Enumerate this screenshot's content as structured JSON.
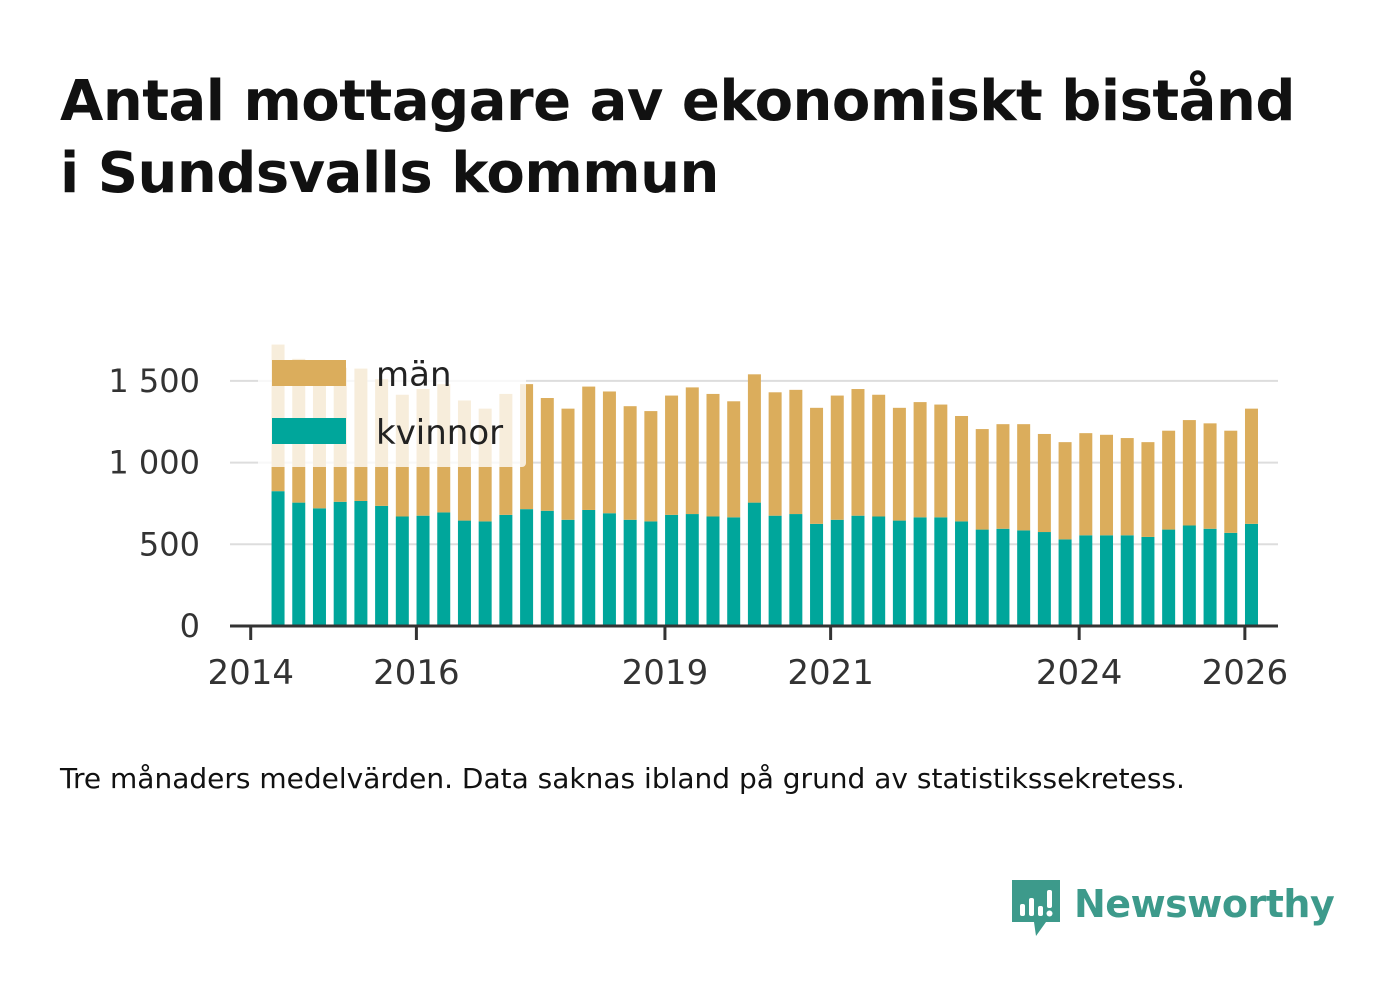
{
  "title_lines": [
    "Antal mottagare av ekonomiskt bistånd",
    "i Sundsvalls kommun"
  ],
  "caption": "Tre månaders medelvärden. Data saknas ibland på grund av statistikssekretess.",
  "brand": {
    "name": "Newsworthy",
    "color": "#3d9a8b",
    "icon": "newsworthy-logo-icon"
  },
  "chart_data": {
    "type": "bar",
    "stacked": true,
    "title": "Antal mottagare av ekonomiskt bistånd i Sundsvalls kommun",
    "xlabel": "",
    "ylabel": "",
    "ylim": [
      0,
      1750
    ],
    "xlim": [
      2013.75,
      2026.4
    ],
    "yticks": [
      0,
      500,
      1000,
      1500
    ],
    "ytick_labels": [
      "0",
      "500",
      "1 000",
      "1 500"
    ],
    "xticks": [
      2014,
      2016,
      2019,
      2021,
      2024,
      2026
    ],
    "xtick_labels": [
      "2014",
      "2016",
      "2019",
      "2021",
      "2024",
      "2026"
    ],
    "grid": true,
    "legend_position": "top-left",
    "x": [
      2014.33,
      2014.58,
      2014.83,
      2015.08,
      2015.33,
      2015.58,
      2015.83,
      2016.08,
      2016.33,
      2016.58,
      2016.83,
      2017.08,
      2017.33,
      2017.58,
      2017.83,
      2018.08,
      2018.33,
      2018.58,
      2018.83,
      2019.08,
      2019.33,
      2019.58,
      2019.83,
      2020.08,
      2020.33,
      2020.58,
      2020.83,
      2021.08,
      2021.33,
      2021.58,
      2021.83,
      2022.08,
      2022.33,
      2022.58,
      2022.83,
      2023.08,
      2023.33,
      2023.58,
      2023.83,
      2024.08,
      2024.33,
      2024.58,
      2024.83,
      2025.08,
      2025.33,
      2025.58,
      2025.83,
      2026.08
    ],
    "series": [
      {
        "name": "kvinnor",
        "color": "#00a69b",
        "values": [
          825,
          755,
          720,
          760,
          765,
          735,
          670,
          675,
          695,
          645,
          640,
          680,
          715,
          705,
          650,
          710,
          690,
          650,
          640,
          680,
          685,
          670,
          665,
          755,
          675,
          685,
          625,
          650,
          675,
          670,
          645,
          665,
          665,
          640,
          590,
          595,
          585,
          575,
          530,
          555,
          555,
          555,
          545,
          590,
          615,
          595,
          570,
          625
        ]
      },
      {
        "name": "män",
        "color": "#dbad5c",
        "values": [
          895,
          880,
          775,
          820,
          810,
          775,
          745,
          775,
          785,
          735,
          690,
          740,
          765,
          690,
          680,
          755,
          745,
          695,
          675,
          730,
          775,
          750,
          710,
          785,
          755,
          760,
          710,
          760,
          775,
          745,
          690,
          705,
          690,
          645,
          615,
          640,
          650,
          600,
          595,
          625,
          615,
          595,
          580,
          605,
          645,
          645,
          625,
          705
        ]
      }
    ],
    "totals": [
      1720,
      1635,
      1495,
      1580,
      1575,
      1510,
      1415,
      1450,
      1480,
      1380,
      1330,
      1420,
      1480,
      1395,
      1330,
      1465,
      1435,
      1345,
      1315,
      1410,
      1460,
      1420,
      1375,
      1540,
      1430,
      1445,
      1335,
      1410,
      1450,
      1415,
      1335,
      1370,
      1355,
      1285,
      1205,
      1235,
      1235,
      1175,
      1125,
      1180,
      1170,
      1150,
      1125,
      1195,
      1260,
      1240,
      1195,
      1330
    ]
  }
}
